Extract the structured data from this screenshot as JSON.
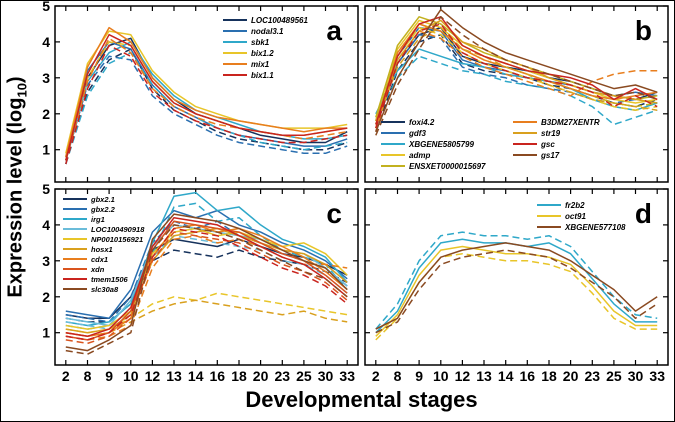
{
  "figure": {
    "ylabel_pre": "Expression level (log",
    "ylabel_sub": "10",
    "ylabel_post": ")",
    "xlabel": "Developmental stages",
    "stages": [
      "2",
      "8",
      "9",
      "10",
      "12",
      "13",
      "14",
      "16",
      "18",
      "20",
      "23",
      "25",
      "30",
      "33"
    ],
    "yticks": [
      "1",
      "2",
      "3",
      "4",
      "5"
    ],
    "ylim": [
      0.1,
      5.0
    ],
    "line_styles_note": "each gene drawn as solid and dashed replicate lines"
  },
  "chart_data": [
    {
      "type": "line",
      "panel": "a",
      "x": [
        "2",
        "8",
        "9",
        "10",
        "12",
        "13",
        "14",
        "16",
        "18",
        "20",
        "23",
        "25",
        "30",
        "33"
      ],
      "series": [
        {
          "name": "LOC100489561",
          "color": "#16325c",
          "values": [
            0.7,
            3.0,
            3.9,
            4.1,
            3.0,
            2.4,
            2.0,
            1.8,
            1.6,
            1.4,
            1.3,
            1.2,
            1.2,
            1.5
          ],
          "values_dashed": [
            0.6,
            2.6,
            3.5,
            3.8,
            2.7,
            2.1,
            1.8,
            1.5,
            1.3,
            1.2,
            1.1,
            1.0,
            1.0,
            1.2
          ]
        },
        {
          "name": "nodal3.1",
          "color": "#2a6fb0",
          "values": [
            0.8,
            3.2,
            4.0,
            3.8,
            2.8,
            2.2,
            1.9,
            1.6,
            1.4,
            1.3,
            1.2,
            1.1,
            1.1,
            1.3
          ],
          "values_dashed": [
            0.7,
            2.8,
            3.6,
            3.5,
            2.5,
            2.0,
            1.7,
            1.4,
            1.2,
            1.1,
            1.0,
            0.9,
            0.9,
            1.1
          ]
        },
        {
          "name": "sbk1",
          "color": "#2fa8c9",
          "values": [
            0.7,
            2.9,
            3.7,
            4.0,
            3.1,
            2.5,
            2.1,
            1.9,
            1.7,
            1.5,
            1.4,
            1.3,
            1.3,
            1.4
          ],
          "values_dashed": [
            0.6,
            2.5,
            3.4,
            3.7,
            2.8,
            2.2,
            1.9,
            1.6,
            1.4,
            1.2,
            1.1,
            1.0,
            1.1,
            1.2
          ]
        },
        {
          "name": "bix1.2",
          "color": "#e8c529",
          "values": [
            0.9,
            3.4,
            4.3,
            4.2,
            3.2,
            2.6,
            2.2,
            2.0,
            1.8,
            1.7,
            1.6,
            1.6,
            1.6,
            1.7
          ],
          "values_dashed": [
            0.8,
            3.0,
            4.0,
            3.9,
            2.9,
            2.3,
            2.0,
            1.8,
            1.6,
            1.5,
            1.4,
            1.4,
            1.5,
            1.6
          ]
        },
        {
          "name": "mix1",
          "color": "#e87e1e",
          "values": [
            0.8,
            3.3,
            4.4,
            4.0,
            3.0,
            2.4,
            2.1,
            1.9,
            1.8,
            1.7,
            1.6,
            1.5,
            1.6,
            1.6
          ],
          "values_dashed": [
            0.7,
            2.9,
            4.1,
            3.7,
            2.7,
            2.2,
            1.9,
            1.7,
            1.6,
            1.5,
            1.4,
            1.3,
            1.4,
            1.5
          ]
        },
        {
          "name": "bix1.1",
          "color": "#c9241e",
          "values": [
            0.7,
            3.1,
            4.2,
            3.9,
            2.9,
            2.3,
            2.0,
            1.8,
            1.6,
            1.5,
            1.4,
            1.4,
            1.5,
            1.6
          ],
          "values_dashed": [
            0.6,
            2.7,
            3.9,
            3.6,
            2.6,
            2.1,
            1.8,
            1.6,
            1.4,
            1.3,
            1.2,
            1.2,
            1.3,
            1.4
          ]
        }
      ]
    },
    {
      "type": "line",
      "panel": "b",
      "x": [
        "2",
        "8",
        "9",
        "10",
        "12",
        "13",
        "14",
        "16",
        "18",
        "20",
        "23",
        "25",
        "30",
        "33"
      ],
      "series": [
        {
          "name": "foxi4.2",
          "color": "#16325c",
          "values": [
            1.6,
            3.4,
            4.2,
            4.4,
            3.6,
            3.4,
            3.3,
            3.2,
            3.0,
            2.9,
            2.7,
            2.5,
            2.4,
            2.6
          ],
          "values_dashed": [
            1.5,
            3.2,
            4.0,
            4.2,
            3.4,
            3.2,
            3.1,
            3.0,
            2.8,
            2.7,
            2.5,
            2.3,
            2.2,
            2.4
          ]
        },
        {
          "name": "gdf3",
          "color": "#2a6fb0",
          "values": [
            1.8,
            3.6,
            4.4,
            4.3,
            3.5,
            3.3,
            3.2,
            3.0,
            2.9,
            2.8,
            2.6,
            2.5,
            2.6,
            2.5
          ],
          "values_dashed": [
            1.7,
            3.4,
            4.2,
            4.1,
            3.3,
            3.1,
            3.0,
            2.8,
            2.7,
            2.6,
            2.4,
            2.3,
            2.4,
            2.3
          ]
        },
        {
          "name": "XBGENE5805799",
          "color": "#2fa8c9",
          "values": [
            2.0,
            3.2,
            3.8,
            3.6,
            3.4,
            3.3,
            3.1,
            3.0,
            2.9,
            2.7,
            2.4,
            2.2,
            2.1,
            2.3
          ],
          "values_dashed": [
            1.9,
            3.0,
            3.6,
            3.4,
            3.2,
            3.1,
            2.9,
            2.8,
            2.7,
            2.5,
            2.2,
            1.7,
            1.9,
            2.1
          ]
        },
        {
          "name": "admp",
          "color": "#e8c529",
          "values": [
            1.7,
            3.8,
            4.6,
            4.4,
            3.9,
            3.6,
            3.4,
            3.2,
            3.0,
            2.8,
            2.6,
            2.4,
            2.3,
            2.4
          ],
          "values_dashed": [
            1.6,
            3.6,
            4.4,
            4.2,
            3.7,
            3.4,
            3.2,
            3.0,
            2.8,
            2.6,
            2.4,
            2.2,
            2.1,
            2.2
          ]
        },
        {
          "name": "ENSXET0000015697",
          "color": "#c2b11f",
          "values": [
            1.9,
            3.9,
            4.7,
            4.5,
            4.0,
            3.7,
            3.5,
            3.3,
            3.1,
            2.9,
            2.7,
            2.5,
            2.4,
            2.5
          ],
          "values_dashed": [
            1.8,
            3.7,
            4.5,
            4.3,
            3.8,
            3.5,
            3.3,
            3.1,
            2.9,
            2.7,
            2.5,
            2.3,
            2.2,
            2.3
          ]
        },
        {
          "name": "B3DM27XENTR",
          "color": "#e87e1e",
          "values": [
            1.6,
            3.7,
            4.5,
            4.3,
            3.8,
            3.5,
            3.3,
            3.1,
            2.9,
            2.7,
            2.5,
            2.4,
            2.5,
            2.6
          ],
          "values_dashed": [
            1.5,
            3.5,
            4.3,
            4.1,
            3.6,
            3.3,
            3.1,
            2.9,
            2.7,
            2.5,
            2.9,
            3.1,
            3.2,
            3.2
          ]
        },
        {
          "name": "str19",
          "color": "#d9a01e",
          "values": [
            1.8,
            3.5,
            4.3,
            4.6,
            4.0,
            3.8,
            3.5,
            3.3,
            3.0,
            2.8,
            2.6,
            2.5,
            2.4,
            2.3
          ],
          "values_dashed": [
            1.7,
            3.3,
            4.1,
            4.4,
            3.8,
            3.6,
            3.3,
            3.1,
            2.8,
            2.6,
            2.4,
            2.3,
            2.2,
            2.1
          ]
        },
        {
          "name": "gsc",
          "color": "#c9241e",
          "values": [
            1.7,
            3.6,
            4.5,
            4.7,
            3.9,
            3.6,
            3.4,
            3.2,
            3.1,
            3.0,
            2.8,
            2.4,
            2.7,
            2.4
          ],
          "values_dashed": [
            1.6,
            3.4,
            4.3,
            4.5,
            3.7,
            3.4,
            3.2,
            3.0,
            2.9,
            2.8,
            2.6,
            2.2,
            2.5,
            2.2
          ]
        },
        {
          "name": "gs17",
          "color": "#8a4a21",
          "values": [
            1.5,
            3.0,
            4.0,
            4.9,
            4.4,
            4.0,
            3.7,
            3.5,
            3.3,
            3.1,
            2.9,
            2.7,
            2.8,
            2.6
          ],
          "values_dashed": [
            1.4,
            2.8,
            3.8,
            4.7,
            4.2,
            3.8,
            3.5,
            3.3,
            3.1,
            2.9,
            2.7,
            2.5,
            2.6,
            2.4
          ]
        }
      ]
    },
    {
      "type": "line",
      "panel": "c",
      "x": [
        "2",
        "8",
        "9",
        "10",
        "12",
        "13",
        "14",
        "16",
        "18",
        "20",
        "23",
        "25",
        "30",
        "33"
      ],
      "series": [
        {
          "name": "gbx2.1",
          "color": "#16325c",
          "values": [
            1.5,
            1.4,
            1.4,
            2.0,
            3.3,
            3.6,
            3.5,
            3.4,
            3.6,
            3.4,
            3.2,
            3.1,
            2.9,
            2.6
          ],
          "values_dashed": [
            1.4,
            1.3,
            1.3,
            1.8,
            3.0,
            3.3,
            3.2,
            3.1,
            3.3,
            3.1,
            3.0,
            2.9,
            2.7,
            2.4
          ]
        },
        {
          "name": "gbx2.2",
          "color": "#2a6fb0",
          "values": [
            1.6,
            1.5,
            1.4,
            2.2,
            3.8,
            4.4,
            4.2,
            4.4,
            4.0,
            3.8,
            3.5,
            3.3,
            3.0,
            2.5
          ],
          "values_dashed": [
            1.5,
            1.4,
            1.3,
            2.0,
            3.5,
            4.1,
            3.9,
            4.1,
            3.7,
            3.5,
            3.2,
            3.0,
            2.8,
            2.3
          ]
        },
        {
          "name": "irg1",
          "color": "#2fa8c9",
          "values": [
            1.3,
            1.2,
            1.3,
            1.8,
            3.5,
            4.8,
            4.9,
            4.4,
            4.5,
            4.0,
            3.6,
            3.4,
            3.1,
            2.4
          ],
          "values_dashed": [
            1.2,
            1.1,
            1.2,
            1.6,
            3.2,
            4.5,
            4.6,
            4.1,
            4.2,
            3.7,
            3.3,
            3.1,
            2.9,
            2.2
          ]
        },
        {
          "name": "LOC100490918",
          "color": "#6bbcd9",
          "values": [
            1.4,
            1.3,
            1.2,
            1.9,
            3.4,
            4.0,
            3.9,
            3.8,
            3.7,
            3.6,
            3.3,
            3.2,
            2.8,
            2.3
          ],
          "values_dashed": [
            1.3,
            1.2,
            1.1,
            1.7,
            3.1,
            3.7,
            3.6,
            3.5,
            3.4,
            3.3,
            3.0,
            2.9,
            2.6,
            2.1
          ]
        },
        {
          "name": "NP0010156921",
          "color": "#e8c529",
          "values": [
            1.2,
            1.1,
            1.2,
            1.6,
            3.2,
            3.8,
            3.9,
            3.7,
            3.8,
            3.6,
            3.4,
            3.5,
            3.2,
            2.6
          ],
          "values_dashed": [
            1.1,
            1.0,
            1.1,
            1.4,
            1.8,
            2.0,
            1.9,
            2.1,
            2.0,
            1.9,
            1.8,
            1.7,
            1.6,
            1.5
          ]
        },
        {
          "name": "hosx1",
          "color": "#d9a01e",
          "values": [
            1.1,
            1.0,
            1.1,
            1.5,
            3.0,
            3.7,
            3.8,
            3.9,
            3.7,
            3.5,
            3.3,
            3.2,
            2.9,
            2.4
          ],
          "values_dashed": [
            1.0,
            0.9,
            1.0,
            1.3,
            1.6,
            1.8,
            1.9,
            1.8,
            1.7,
            1.6,
            1.5,
            1.6,
            1.4,
            1.3
          ]
        },
        {
          "name": "cdx1",
          "color": "#e87e1e",
          "values": [
            1.0,
            0.9,
            1.0,
            1.4,
            3.1,
            3.9,
            4.0,
            3.8,
            3.9,
            3.7,
            3.4,
            3.1,
            2.7,
            2.2
          ],
          "values_dashed": [
            0.9,
            0.8,
            0.9,
            1.2,
            2.8,
            3.6,
            3.7,
            3.5,
            3.6,
            3.4,
            3.1,
            2.9,
            2.9,
            2.8
          ]
        },
        {
          "name": "xdn",
          "color": "#d9541e",
          "values": [
            0.9,
            0.8,
            1.0,
            1.6,
            3.3,
            4.1,
            4.0,
            3.9,
            3.8,
            3.5,
            3.2,
            3.0,
            2.6,
            2.1
          ],
          "values_dashed": [
            0.8,
            0.7,
            0.9,
            1.4,
            3.0,
            3.8,
            3.7,
            3.6,
            3.5,
            3.2,
            2.9,
            2.7,
            2.4,
            1.9
          ]
        },
        {
          "name": "tmem1506",
          "color": "#c9241e",
          "values": [
            1.0,
            0.9,
            1.1,
            1.7,
            3.4,
            4.2,
            4.1,
            4.0,
            3.7,
            3.4,
            3.1,
            2.9,
            2.5,
            2.0
          ],
          "values_dashed": [
            0.9,
            0.8,
            1.0,
            1.5,
            3.1,
            3.9,
            3.8,
            3.7,
            3.4,
            3.1,
            2.8,
            2.6,
            2.3,
            1.8
          ]
        },
        {
          "name": "slc30a8",
          "color": "#8a4a21",
          "values": [
            0.6,
            0.5,
            0.8,
            1.2,
            3.6,
            4.3,
            4.2,
            4.1,
            3.9,
            3.6,
            3.3,
            3.0,
            2.8,
            2.2
          ],
          "values_dashed": [
            0.5,
            0.4,
            0.7,
            1.0,
            3.3,
            4.0,
            3.9,
            3.8,
            3.6,
            3.3,
            3.0,
            2.7,
            2.5,
            2.0
          ]
        }
      ]
    },
    {
      "type": "line",
      "panel": "d",
      "x": [
        "2",
        "8",
        "9",
        "10",
        "12",
        "13",
        "14",
        "16",
        "18",
        "20",
        "23",
        "25",
        "30",
        "33"
      ],
      "series": [
        {
          "name": "fr2b2",
          "color": "#2fa8c9",
          "values": [
            1.0,
            1.6,
            2.8,
            3.5,
            3.6,
            3.5,
            3.5,
            3.4,
            3.5,
            3.2,
            2.5,
            1.8,
            1.3,
            1.3
          ],
          "values_dashed": [
            1.1,
            1.8,
            3.0,
            3.7,
            3.8,
            3.7,
            3.7,
            3.6,
            3.7,
            3.4,
            2.7,
            2.0,
            1.5,
            1.4
          ]
        },
        {
          "name": "oct91",
          "color": "#e8c529",
          "values": [
            0.9,
            1.5,
            2.6,
            3.3,
            3.4,
            3.3,
            3.2,
            3.2,
            3.1,
            2.9,
            2.3,
            1.6,
            1.2,
            1.2
          ],
          "values_dashed": [
            0.8,
            1.4,
            2.4,
            3.1,
            3.2,
            3.1,
            3.0,
            3.0,
            2.9,
            2.7,
            2.1,
            1.4,
            1.1,
            1.1
          ]
        },
        {
          "name": "XBGENE577108",
          "color": "#8a4a21",
          "values": [
            1.1,
            1.4,
            2.4,
            3.1,
            3.3,
            3.4,
            3.5,
            3.4,
            3.3,
            3.0,
            2.6,
            2.2,
            1.6,
            2.0
          ],
          "values_dashed": [
            1.0,
            1.3,
            2.2,
            2.9,
            3.1,
            3.2,
            3.3,
            3.2,
            3.1,
            2.8,
            2.4,
            2.0,
            1.4,
            1.8
          ]
        }
      ]
    }
  ]
}
